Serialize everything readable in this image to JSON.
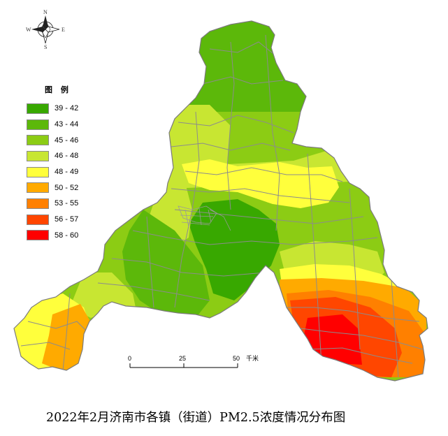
{
  "title": "2022年2月济南市各镇（街道）PM2.5浓度情况分布图",
  "compass": {
    "n": "N",
    "s": "S",
    "e": "E",
    "w": "W"
  },
  "legend": {
    "title": "图 例",
    "items": [
      {
        "label": "39 - 42",
        "color": "#38a800"
      },
      {
        "label": "43 - 44",
        "color": "#5cb80a"
      },
      {
        "label": "45 - 46",
        "color": "#8ccc14"
      },
      {
        "label": "46 - 48",
        "color": "#c8e632"
      },
      {
        "label": "48 - 49",
        "color": "#ffff3c"
      },
      {
        "label": "50 - 52",
        "color": "#ffaa00"
      },
      {
        "label": "53 - 55",
        "color": "#ff8000"
      },
      {
        "label": "56 - 57",
        "color": "#ff4600"
      },
      {
        "label": "58 - 60",
        "color": "#ff0000"
      }
    ]
  },
  "scale_bar": {
    "ticks": [
      "0",
      "25",
      "50"
    ],
    "unit": "千米"
  }
}
